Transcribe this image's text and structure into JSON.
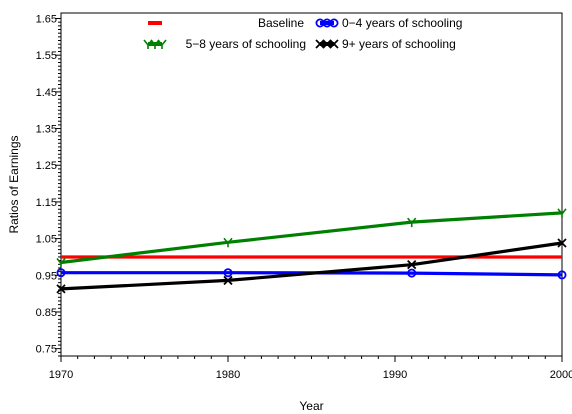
{
  "chart_data": {
    "type": "line",
    "xlabel": "Year",
    "ylabel": "Ratios of Earnings",
    "xlim": [
      1970,
      2000
    ],
    "ylim": [
      0.73,
      1.665
    ],
    "x_ticks": [
      "1970",
      "1980",
      "1990",
      "2000"
    ],
    "y_ticks": [
      "0.75",
      "0.85",
      "0.95",
      "1.05",
      "1.15",
      "1.25",
      "1.35",
      "1.45",
      "1.55",
      "1.65"
    ],
    "grid": false,
    "legend_position": "top",
    "series": [
      {
        "name": "Baseline",
        "color": "#ff0000",
        "marker": "none",
        "points": [
          [
            1970,
            1.0
          ],
          [
            2000,
            1.0
          ]
        ]
      },
      {
        "name": "0−4 years of schooling",
        "color": "#0000ff",
        "marker": "circle",
        "points": [
          [
            1970,
            0.957
          ],
          [
            1980,
            0.957
          ],
          [
            1991,
            0.956
          ],
          [
            2000,
            0.951
          ]
        ]
      },
      {
        "name": "5−8 years of schooling",
        "color": "#008000",
        "marker": "tee",
        "points": [
          [
            1970,
            0.985
          ],
          [
            1980,
            1.04
          ],
          [
            1991,
            1.095
          ],
          [
            2000,
            1.12
          ]
        ]
      },
      {
        "name": "9+ years of schooling",
        "color": "#000000",
        "marker": "x",
        "points": [
          [
            1970,
            0.913
          ],
          [
            1980,
            0.936
          ],
          [
            1991,
            0.979
          ],
          [
            2000,
            1.038
          ]
        ]
      }
    ]
  }
}
